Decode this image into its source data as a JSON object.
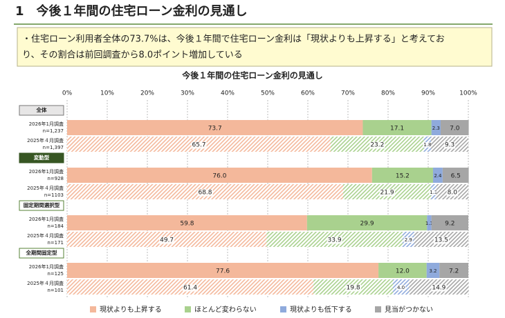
{
  "header": {
    "title": "1　今後１年間の住宅ローン金利の見通し"
  },
  "note": {
    "lines": [
      "・住宅ローン利用者全体の73.7%は、今後１年間で住宅ローン金利は「現状よりも上昇する」と考えてお",
      "り、その割合は前回調査から8.0ポイント増加している"
    ]
  },
  "chart_data": {
    "type": "bar",
    "orientation": "horizontal",
    "stacked": true,
    "title": "今後１年間の住宅ローン金利の見通し",
    "groups": [
      "全体",
      "変動型",
      "固定期間選択型",
      "全期間固定型"
    ],
    "categories": [
      "2026年1月調査",
      "2025年４月調査",
      "2026年1月調査",
      "2025年４月調査",
      "2026年1月調査",
      "2025年４月調査",
      "2026年1月調査",
      "2025年４月調査"
    ],
    "sample_sizes": [
      "n=1,237",
      "n=1,397",
      "n=928",
      "n=1103",
      "n=184",
      "n=171",
      "n=125",
      "n=101"
    ],
    "series": [
      {
        "name": "現状よりも上昇する",
        "color": "#f4b89b",
        "values": [
          73.7,
          65.7,
          76.0,
          68.8,
          59.8,
          49.7,
          77.6,
          61.4
        ],
        "value_labels": [
          "73.7",
          "65.7",
          "76.0",
          "68.8",
          "59.8",
          "49.7",
          "77.6",
          "61.4"
        ]
      },
      {
        "name": "ほとんど変わらない",
        "color": "#a9d18e",
        "values": [
          17.1,
          23.2,
          15.2,
          21.9,
          29.9,
          33.9,
          12.0,
          19.8
        ],
        "value_labels": [
          "17.1",
          "23.2",
          "15.2",
          "21.9",
          "29.9",
          "33.9",
          "12.0",
          "19.8"
        ]
      },
      {
        "name": "現状よりも低下する",
        "color": "#8faadc",
        "values": [
          2.3,
          1.8,
          2.4,
          1.3,
          1.1,
          2.9,
          3.2,
          4.0
        ],
        "value_labels": [
          "2.3",
          "1.8",
          "2.4",
          "1.3",
          "1.1",
          "2.9",
          "3.2",
          "4.0"
        ]
      },
      {
        "name": "見当がつかない",
        "color": "#a6a6a6",
        "values": [
          7.0,
          9.3,
          6.5,
          8.0,
          9.2,
          13.5,
          7.2,
          14.9
        ],
        "value_labels": [
          "7.0",
          "9.3",
          "6.5",
          "8.0",
          "9.2",
          "13.5",
          "7.2",
          "14.9"
        ]
      }
    ],
    "xlim": [
      0,
      100
    ],
    "xticks": [
      {
        "value": 0,
        "label": "0%"
      },
      {
        "value": 10,
        "label": "10%"
      },
      {
        "value": 20,
        "label": "20%"
      },
      {
        "value": 30,
        "label": "30%"
      },
      {
        "value": 40,
        "label": "40%"
      },
      {
        "value": 50,
        "label": "50%"
      },
      {
        "value": 60,
        "label": "60%"
      },
      {
        "value": 70,
        "label": "70%"
      },
      {
        "value": 80,
        "label": "80%"
      },
      {
        "value": 90,
        "label": "90%"
      },
      {
        "value": 100,
        "label": "100%"
      }
    ],
    "grid": true,
    "legend": "bottom"
  }
}
